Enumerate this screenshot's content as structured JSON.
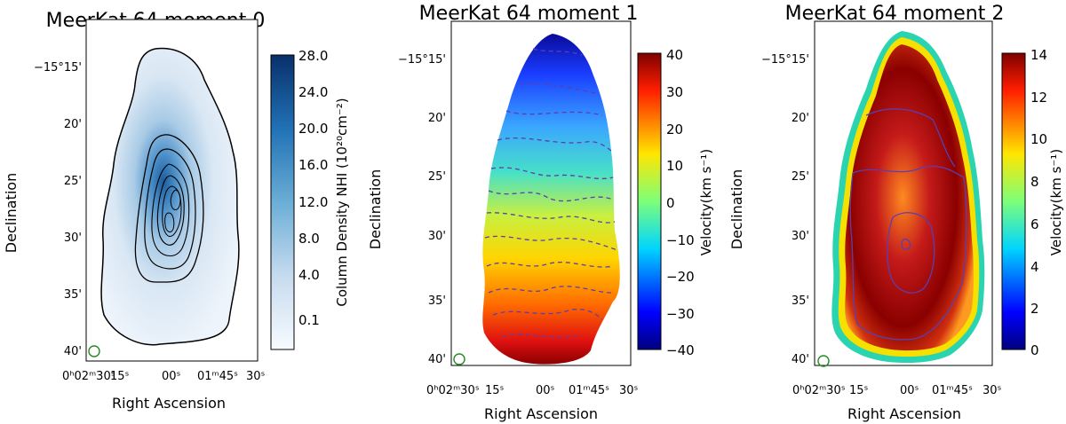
{
  "figure": {
    "panels": [
      {
        "title": "MeerKat 64 moment 0",
        "colorbar_label": "Column Density NHI (10²⁰cm⁻²)",
        "colorbar_ticks": [
          "28.0",
          "24.0",
          "20.0",
          "16.0",
          "12.0",
          "8.0",
          "4.0",
          "0.1"
        ],
        "colormap": "blues"
      },
      {
        "title": "MeerKat 64 moment 1",
        "colorbar_label": "Velocity(km s⁻¹)",
        "colorbar_ticks": [
          "40",
          "30",
          "20",
          "10",
          "0",
          "−10",
          "−20",
          "−30",
          "−40"
        ],
        "colormap": "jet"
      },
      {
        "title": "MeerKat 64  moment 2",
        "colorbar_label": "Velocity(km s⁻¹)",
        "colorbar_ticks": [
          "14",
          "12",
          "10",
          "8",
          "6",
          "4",
          "2",
          "0"
        ],
        "colormap": "jet"
      }
    ],
    "xlabel": "Right Ascension",
    "ylabel": "Declination",
    "xticks": [
      "0ʰ02ᵐ30ˢ",
      "15ˢ",
      "00ˢ",
      "01ᵐ45ˢ",
      "30ˢ"
    ],
    "yticks": [
      "−15°15'",
      "20'",
      "25'",
      "30'",
      "35'",
      "40'"
    ],
    "colors": {
      "beam": "#228b22",
      "contour_dark": "#111111",
      "contour_purple": "#5b3fb0"
    }
  },
  "chart_data": [
    {
      "type": "heatmap",
      "title": "MeerKat 64 moment 0",
      "xlabel": "Right Ascension",
      "ylabel": "Declination",
      "colorbar_label": "Column Density NHI (10^20 cm^-2)",
      "colorbar_range": [
        0.1,
        28.0
      ],
      "contour_levels_count": 8
    },
    {
      "type": "heatmap",
      "title": "MeerKat 64 moment 1",
      "xlabel": "Right Ascension",
      "ylabel": "Declination",
      "colorbar_label": "Velocity (km s^-1)",
      "colorbar_range": [
        -40,
        40
      ],
      "gradient": "north blue (~-40) to south red (~40)"
    },
    {
      "type": "heatmap",
      "title": "MeerKat 64  moment 2",
      "xlabel": "Right Ascension",
      "ylabel": "Declination",
      "colorbar_label": "Velocity (km s^-1)",
      "colorbar_range": [
        0,
        14
      ]
    }
  ]
}
